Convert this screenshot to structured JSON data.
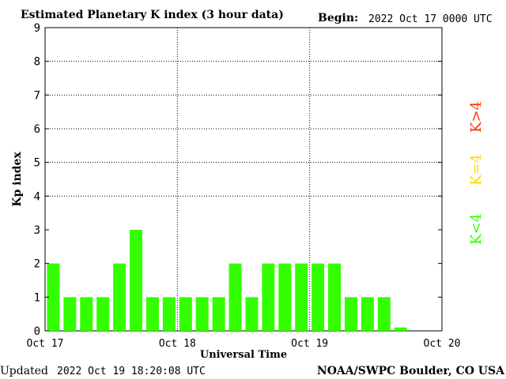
{
  "header": {
    "title": "Estimated Planetary K index (3 hour data)",
    "begin_label": "Begin:",
    "begin_value": "2022 Oct 17 0000 UTC"
  },
  "footer": {
    "updated_label": "Updated",
    "updated_value": "2022 Oct 19 18:20:08 UTC",
    "credit": "NOAA/SWPC Boulder, CO USA"
  },
  "legend": {
    "items": [
      {
        "label": "K<4",
        "color": "#33ff00"
      },
      {
        "label": "K=4",
        "color": "#ffd700"
      },
      {
        "label": "K>4",
        "color": "#ff3300"
      }
    ]
  },
  "chart_data": {
    "type": "bar",
    "title": "Estimated Planetary K index (3 hour data)",
    "xlabel": "Universal Time",
    "ylabel": "Kp index",
    "ylim": [
      0,
      9
    ],
    "yticks": [
      "0",
      "1",
      "2",
      "3",
      "4",
      "5",
      "6",
      "7",
      "8",
      "9"
    ],
    "xticks": [
      "Oct 17",
      "Oct 18",
      "Oct 19",
      "Oct 20"
    ],
    "grid": true,
    "bar_color": "#33ff00",
    "values": [
      2,
      1,
      1,
      1,
      2,
      3,
      1,
      1,
      1,
      1,
      1,
      2,
      1,
      2,
      2,
      2,
      2,
      2,
      1,
      1,
      1,
      0.1
    ]
  }
}
